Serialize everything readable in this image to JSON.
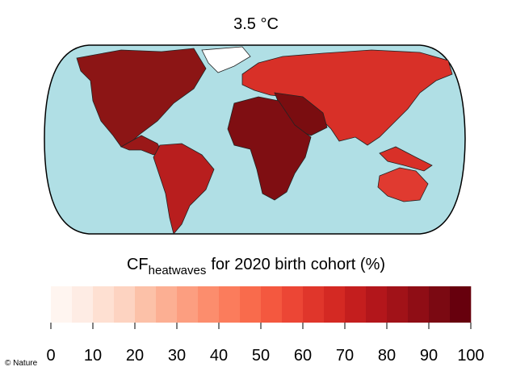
{
  "title": "3.5 °C",
  "colorbar": {
    "label_main": "CF",
    "label_sub": "heatwaves",
    "label_rest": "for 2020 birth cohort (%)",
    "lim": [
      0,
      100
    ],
    "ticks": [
      0,
      10,
      20,
      30,
      40,
      50,
      60,
      70,
      80,
      90,
      100
    ],
    "bins": [
      0,
      5,
      10,
      15,
      20,
      25,
      30,
      35,
      40,
      45,
      50,
      55,
      60,
      65,
      70,
      75,
      80,
      85,
      90,
      95,
      100
    ],
    "colors": [
      "#fff5f0",
      "#feece4",
      "#fee0d2",
      "#fdd3c1",
      "#fcc1a8",
      "#fcaf93",
      "#fc9e80",
      "#fc8d6d",
      "#fb7c5c",
      "#f96b4c",
      "#f4583f",
      "#ec4635",
      "#e0362b",
      "#d42923",
      "#c41e1e",
      "#b3161b",
      "#a11218",
      "#8f0d15",
      "#7b0912",
      "#67000d"
    ]
  },
  "credit": "© Nature"
}
